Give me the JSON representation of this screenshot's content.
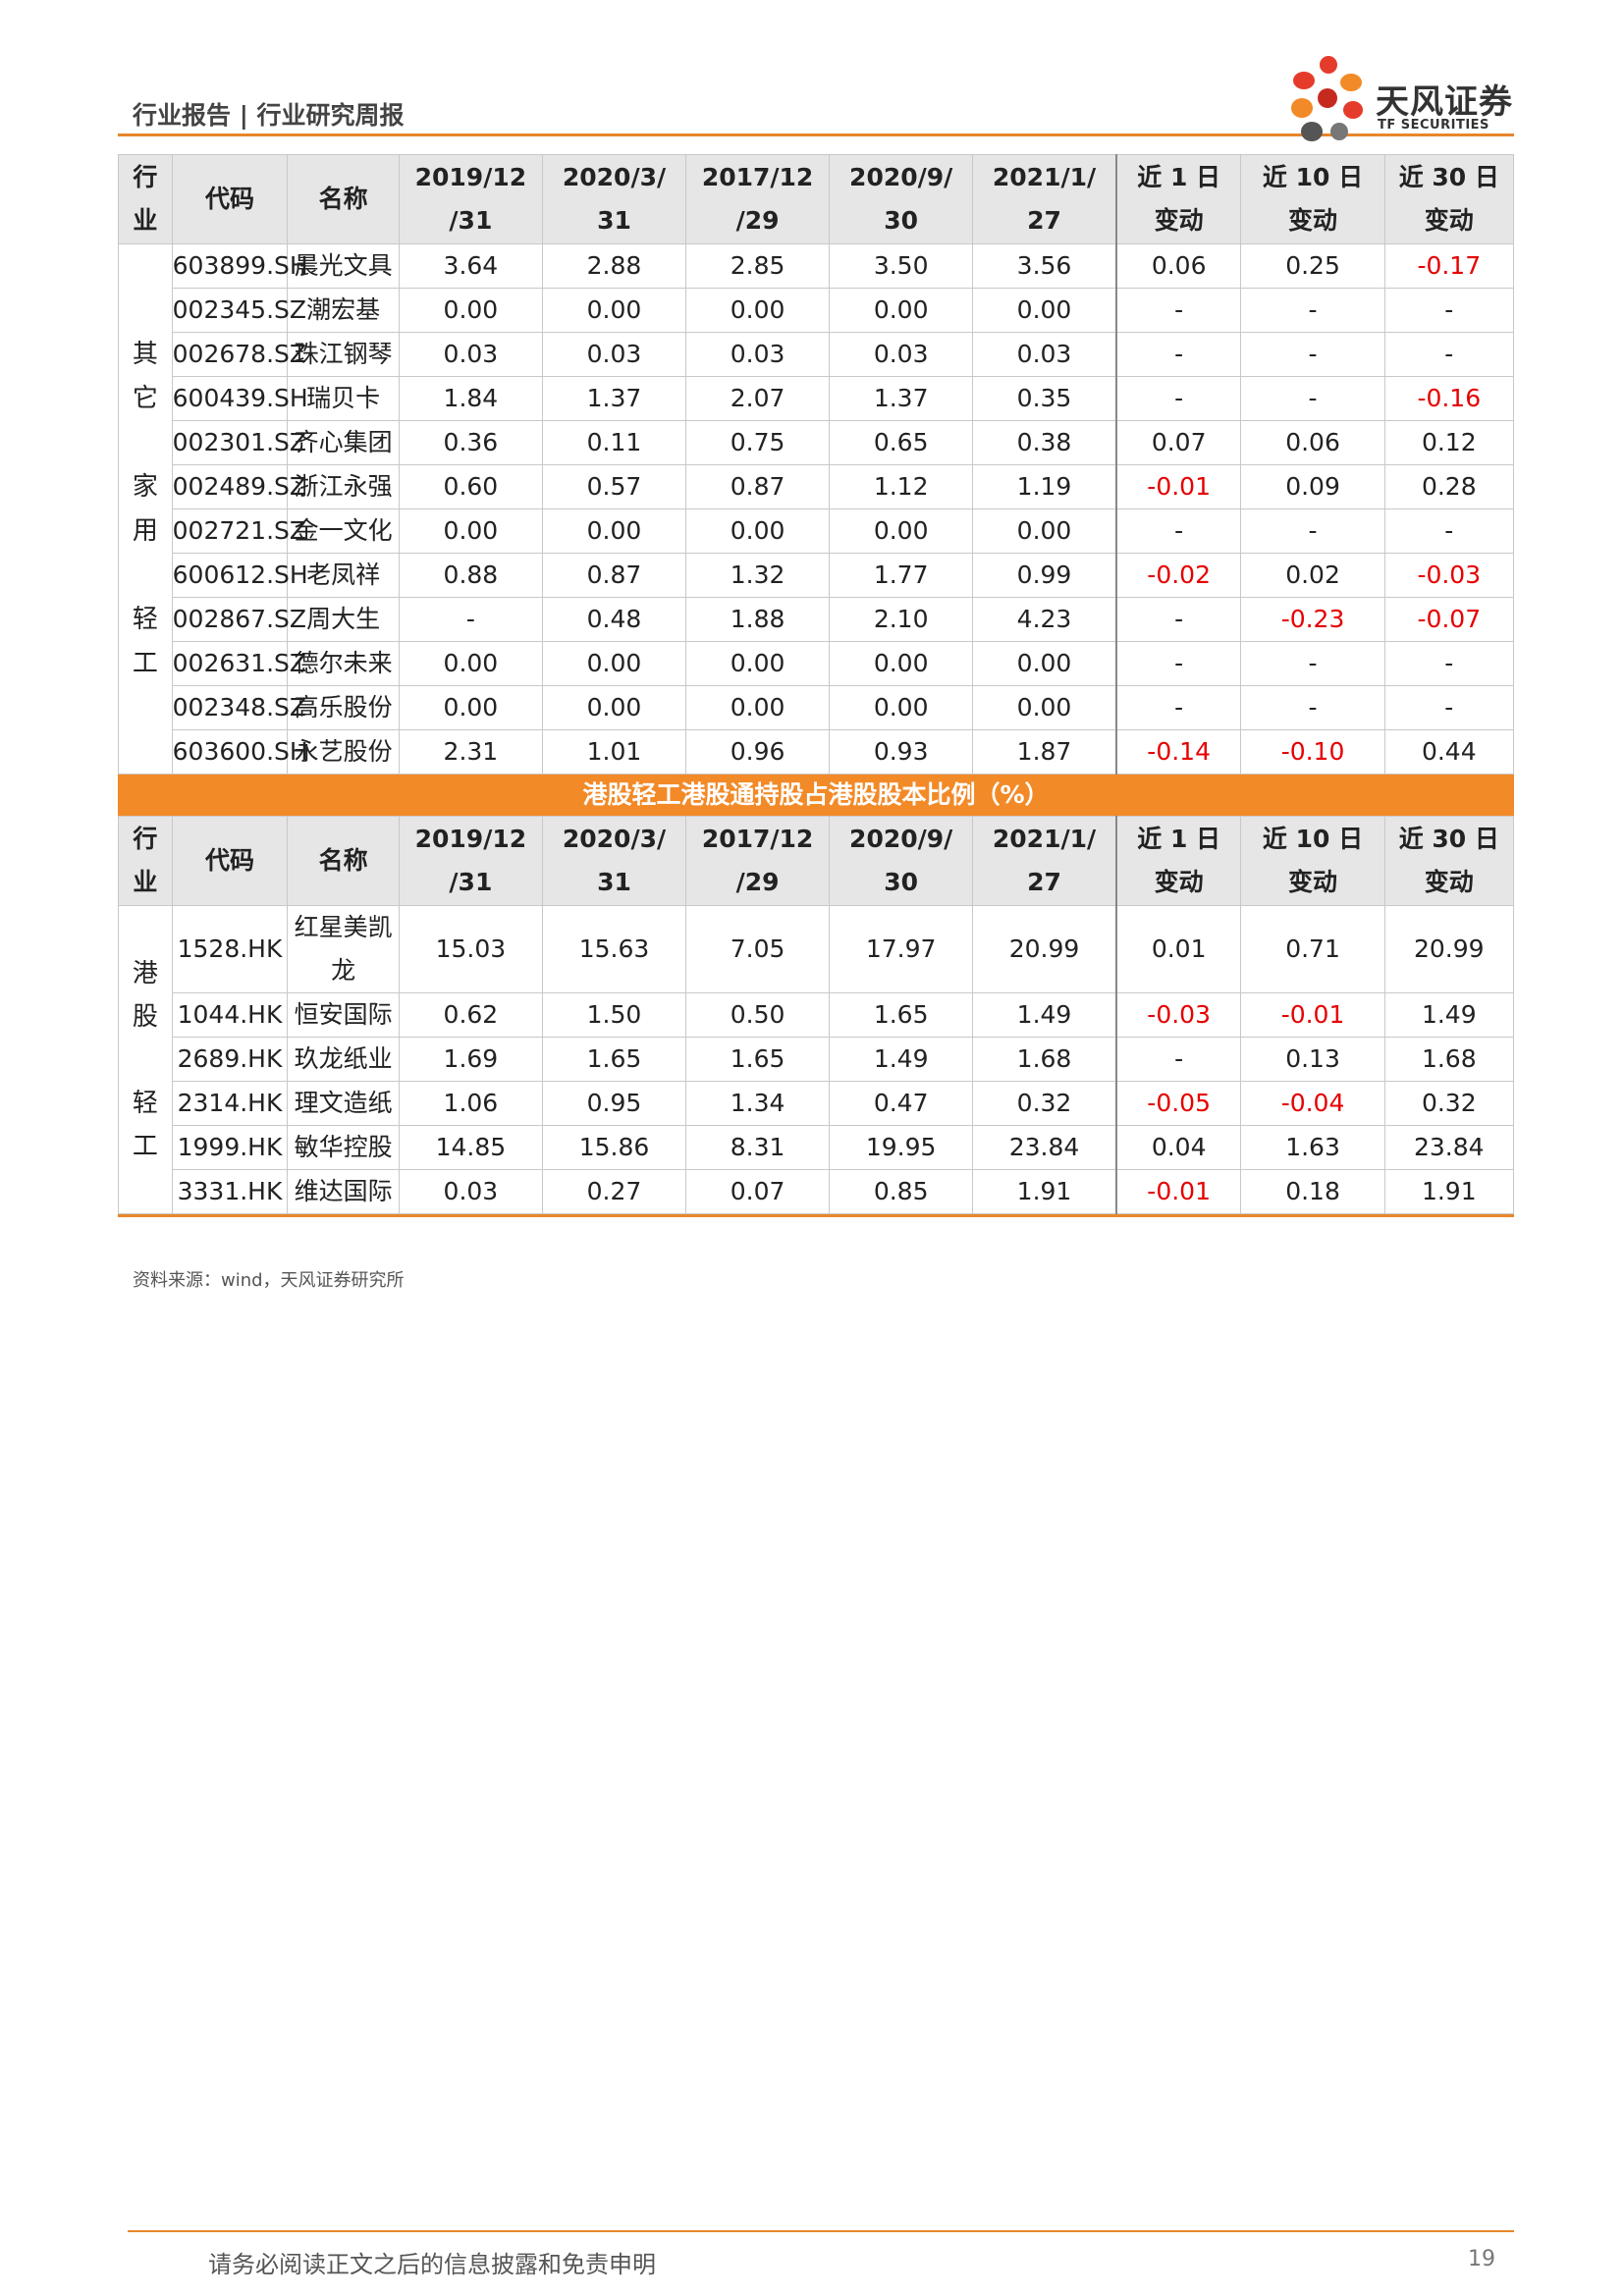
{
  "header": {
    "title": "行业报告 | 行业研究周报"
  },
  "logo": {
    "cn": "天风证券",
    "en": "TF SECURITIES"
  },
  "table1": {
    "headers": [
      "行业",
      "代码",
      "名称",
      "2019/12/31",
      "2020/3/31",
      "2017/12/29",
      "2020/9/30",
      "2021/1/27",
      "近 1 日变动",
      "近 10 日变动",
      "近 30 日变动"
    ],
    "headers_split": [
      [
        "行",
        "业"
      ],
      [
        "代码"
      ],
      [
        "名称"
      ],
      [
        "2019/12",
        "/31"
      ],
      [
        "2020/3/",
        "31"
      ],
      [
        "2017/12",
        "/29"
      ],
      [
        "2020/9/",
        "30"
      ],
      [
        "2021/1/",
        "27"
      ],
      [
        "近 1 日",
        "变动"
      ],
      [
        "近 10 日",
        "变动"
      ],
      [
        "近 30 日",
        "变动"
      ]
    ],
    "industry_chars": [
      "其",
      "它",
      "家",
      "用",
      "轻",
      "工"
    ],
    "rows": [
      [
        "603899.SH",
        "晨光文具",
        "3.64",
        "2.88",
        "2.85",
        "3.50",
        "3.56",
        "0.06",
        "0.25",
        "-0.17"
      ],
      [
        "002345.SZ",
        "潮宏基",
        "0.00",
        "0.00",
        "0.00",
        "0.00",
        "0.00",
        "-",
        "-",
        "-"
      ],
      [
        "002678.SZ",
        "珠江钢琴",
        "0.03",
        "0.03",
        "0.03",
        "0.03",
        "0.03",
        "-",
        "-",
        "-"
      ],
      [
        "600439.SH",
        "瑞贝卡",
        "1.84",
        "1.37",
        "2.07",
        "1.37",
        "0.35",
        "-",
        "-",
        "-0.16"
      ],
      [
        "002301.SZ",
        "齐心集团",
        "0.36",
        "0.11",
        "0.75",
        "0.65",
        "0.38",
        "0.07",
        "0.06",
        "0.12"
      ],
      [
        "002489.SZ",
        "浙江永强",
        "0.60",
        "0.57",
        "0.87",
        "1.12",
        "1.19",
        "-0.01",
        "0.09",
        "0.28"
      ],
      [
        "002721.SZ",
        "金一文化",
        "0.00",
        "0.00",
        "0.00",
        "0.00",
        "0.00",
        "-",
        "-",
        "-"
      ],
      [
        "600612.SH",
        "老凤祥",
        "0.88",
        "0.87",
        "1.32",
        "1.77",
        "0.99",
        "-0.02",
        "0.02",
        "-0.03"
      ],
      [
        "002867.SZ",
        "周大生",
        "-",
        "0.48",
        "1.88",
        "2.10",
        "4.23",
        "-",
        "-0.23",
        "-0.07"
      ],
      [
        "002631.SZ",
        "德尔未来",
        "0.00",
        "0.00",
        "0.00",
        "0.00",
        "0.00",
        "-",
        "-",
        "-"
      ],
      [
        "002348.SZ",
        "高乐股份",
        "0.00",
        "0.00",
        "0.00",
        "0.00",
        "0.00",
        "-",
        "-",
        "-"
      ],
      [
        "603600.SH",
        "永艺股份",
        "2.31",
        "1.01",
        "0.96",
        "0.93",
        "1.87",
        "-0.14",
        "-0.10",
        "0.44"
      ]
    ]
  },
  "band_title": "港股轻工港股通持股占港股股本比例（%）",
  "table2": {
    "headers_split": [
      [
        "行",
        "业"
      ],
      [
        "代码"
      ],
      [
        "名称"
      ],
      [
        "2019/12",
        "/31"
      ],
      [
        "2020/3/",
        "31"
      ],
      [
        "2017/12",
        "/29"
      ],
      [
        "2020/9/",
        "30"
      ],
      [
        "2021/1/",
        "27"
      ],
      [
        "近 1 日",
        "变动"
      ],
      [
        "近 10 日",
        "变动"
      ],
      [
        "近 30 日",
        "变动"
      ]
    ],
    "industry_chars": [
      "港",
      "股",
      "轻",
      "工"
    ],
    "rows": [
      [
        "1528.HK",
        "红星美凯龙",
        "15.03",
        "15.63",
        "7.05",
        "17.97",
        "20.99",
        "0.01",
        "0.71",
        "20.99"
      ],
      [
        "1044.HK",
        "恒安国际",
        "0.62",
        "1.50",
        "0.50",
        "1.65",
        "1.49",
        "-0.03",
        "-0.01",
        "1.49"
      ],
      [
        "2689.HK",
        "玖龙纸业",
        "1.69",
        "1.65",
        "1.65",
        "1.49",
        "1.68",
        "-",
        "0.13",
        "1.68"
      ],
      [
        "2314.HK",
        "理文造纸",
        "1.06",
        "0.95",
        "1.34",
        "0.47",
        "0.32",
        "-0.05",
        "-0.04",
        "0.32"
      ],
      [
        "1999.HK",
        "敏华控股",
        "14.85",
        "15.86",
        "8.31",
        "19.95",
        "23.84",
        "0.04",
        "1.63",
        "23.84"
      ],
      [
        "3331.HK",
        "维达国际",
        "0.03",
        "0.27",
        "0.07",
        "0.85",
        "1.91",
        "-0.01",
        "0.18",
        "1.91"
      ]
    ]
  },
  "source": "资料来源：wind，天风证券研究所",
  "footer": {
    "disclaimer": "请务必阅读正文之后的信息披露和免责申明",
    "page": "19"
  },
  "colors": {
    "accent": "#e8862b",
    "band": "#f28a28",
    "negative": "#e60000",
    "header_bg": "#e6e6e6"
  }
}
